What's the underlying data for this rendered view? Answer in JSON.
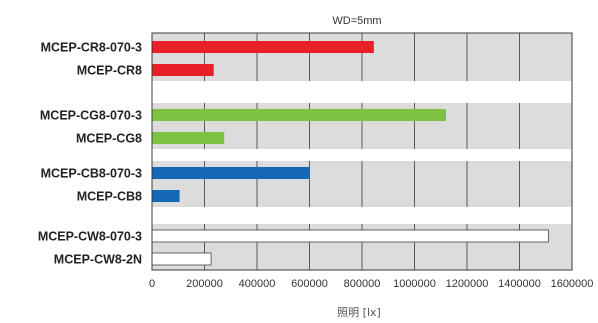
{
  "chart_data": {
    "type": "bar",
    "orientation": "horizontal",
    "title": "WD=5mm",
    "xlabel": "照明 [lx]",
    "xlim": [
      0,
      1600000
    ],
    "xticks": [
      0,
      200000,
      400000,
      600000,
      800000,
      1000000,
      1200000,
      1400000,
      1600000
    ],
    "tick_labels": [
      "0",
      "200000",
      "400000",
      "600000",
      "800000",
      "1000000",
      "1200000",
      "1400000",
      "1600000"
    ],
    "grid": true,
    "categories": [
      "MCEP-CR8-070-3",
      "MCEP-CR8",
      "MCEP-CG8-070-3",
      "MCEP-CG8",
      "MCEP-CB8-070-3",
      "MCEP-CB8",
      "MCEP-CW8-070-3",
      "MCEP-CW8-2N"
    ],
    "values": [
      845000,
      235000,
      1120000,
      275000,
      600000,
      105000,
      1510000,
      225000
    ],
    "colors": [
      "#e8202a",
      "#e8202a",
      "#7dc243",
      "#7dc243",
      "#1569b4",
      "#1569b4",
      "#ffffff",
      "#ffffff"
    ],
    "plot_background": "#dcdcdc",
    "separator_color": "#ffffff"
  }
}
